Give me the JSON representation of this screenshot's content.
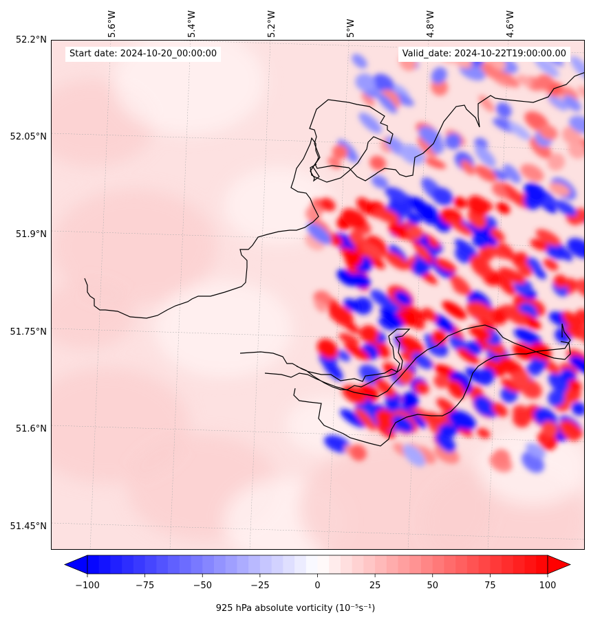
{
  "header": {
    "start_date": "Start date: 2024-10-20_00:00:00",
    "valid_date": "Valid_date: 2024-10-22T19:00:00.00"
  },
  "map": {
    "lat_labels": [
      "52.2°N",
      "52.05°N",
      "51.9°N",
      "51.75°N",
      "51.6°N",
      "51.45°N"
    ],
    "lon_labels": [
      "5.6°W",
      "5.4°W",
      "5.2°W",
      "5°W",
      "4.8°W",
      "4.6°W"
    ],
    "gridlines": true,
    "background_color": "#fde1e1",
    "coastline_color": "#000000"
  },
  "colorbar": {
    "label": "925 hPa absolute vorticity (10⁻⁵s⁻¹)",
    "ticks": [
      "−100",
      "−75",
      "−50",
      "−25",
      "0",
      "25",
      "50",
      "75",
      "100"
    ],
    "min": -100,
    "max": 100,
    "colormap": "bwr",
    "extend": "both",
    "low_color": "#0000ff",
    "mid_color": "#ffffff",
    "high_color": "#ff0000"
  }
}
